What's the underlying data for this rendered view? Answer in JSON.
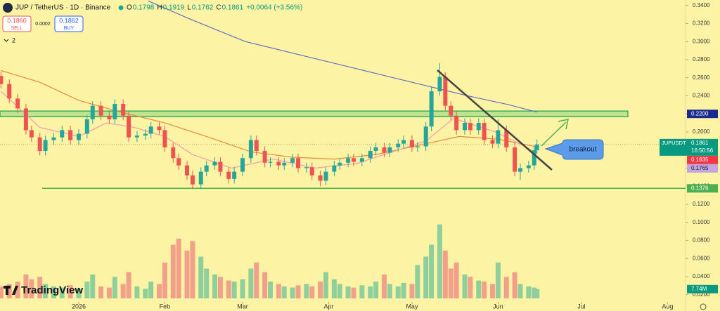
{
  "chart_data": {
    "type": "candlestick",
    "title": "JUP / TetherUS · 1D · Binance",
    "ohlc": [
      {
        "key": "O",
        "value": "0.1798"
      },
      {
        "key": "H",
        "value": "0.1919"
      },
      {
        "key": "L",
        "value": "0.1762"
      },
      {
        "key": "C",
        "value": "0.1861"
      }
    ],
    "change": "+0.0064 (+3.56%)",
    "sell_price": "0.1860",
    "sell": "SELL",
    "spread": "0.0002",
    "buy_price": "0.1862",
    "buy": "BUY",
    "indicators": "2",
    "logo": "TradingView",
    "symbol": "JUPUSDT",
    "last_price": 0.1861,
    "last_time": "16:50:56",
    "up_color": "#26a69a",
    "down_color": "#ef5350",
    "xlim": [
      -28.35,
      218.5
    ],
    "xticks": [
      {
        "value": 0,
        "label": "2026"
      },
      {
        "value": 31,
        "label": "Feb"
      },
      {
        "value": 59,
        "label": "Mar"
      },
      {
        "value": 90,
        "label": "Apr"
      },
      {
        "value": 120,
        "label": "May"
      },
      {
        "value": 151,
        "label": "Jun"
      },
      {
        "value": 181,
        "label": "Jul"
      },
      {
        "value": 212,
        "label": "Aug"
      }
    ],
    "ylim": [
      0.012,
      0.346
    ],
    "yticks": [
      {
        "value": 0.34,
        "label": "0.3400"
      },
      {
        "value": 0.32,
        "label": "0.3200"
      },
      {
        "value": 0.3,
        "label": "0.3000"
      },
      {
        "value": 0.28,
        "label": "0.2800"
      },
      {
        "value": 0.26,
        "label": "0.2600"
      },
      {
        "value": 0.24,
        "label": "0.2400"
      },
      {
        "value": 0.22,
        "label": "0.2200"
      },
      {
        "value": 0.2,
        "label": "0.2000"
      },
      {
        "value": 0.18,
        "label": "0.1800"
      },
      {
        "value": 0.16,
        "label": "0.1600"
      },
      {
        "value": 0.14,
        "label": "0.1400"
      },
      {
        "value": 0.12,
        "label": "0.1200"
      },
      {
        "value": 0.1,
        "label": "0.1000"
      },
      {
        "value": 0.08,
        "label": "0.0800"
      },
      {
        "value": 0.06,
        "label": "0.0600"
      },
      {
        "value": 0.04,
        "label": "0.0400"
      },
      {
        "value": 0.02,
        "label": "0.0200"
      }
    ],
    "x": [
      -28,
      -25,
      -22,
      -19,
      -17,
      -14,
      -12,
      -9,
      -6,
      -3,
      0,
      3,
      5,
      8,
      11,
      13,
      16,
      18,
      21,
      24,
      26,
      29,
      31,
      34,
      36,
      39,
      41,
      44,
      46,
      49,
      51,
      54,
      56,
      59,
      62,
      64,
      67,
      69,
      72,
      74,
      77,
      79,
      82,
      84,
      87,
      89,
      92,
      94,
      97,
      99,
      102,
      105,
      107,
      110,
      112,
      115,
      117,
      120,
      122,
      125,
      127,
      130,
      132,
      134,
      136,
      139,
      141,
      144,
      146,
      149,
      151,
      154,
      157,
      159,
      162,
      164,
      165
    ],
    "open": [
      0.262,
      0.253,
      0.237,
      0.226,
      0.202,
      0.194,
      0.179,
      0.191,
      0.194,
      0.202,
      0.191,
      0.198,
      0.214,
      0.229,
      0.218,
      0.214,
      0.231,
      0.218,
      0.194,
      0.196,
      0.198,
      0.206,
      0.202,
      0.183,
      0.171,
      0.163,
      0.152,
      0.142,
      0.156,
      0.163,
      0.167,
      0.156,
      0.148,
      0.156,
      0.171,
      0.191,
      0.179,
      0.166,
      0.167,
      0.163,
      0.166,
      0.171,
      0.16,
      0.161,
      0.152,
      0.146,
      0.156,
      0.163,
      0.166,
      0.171,
      0.167,
      0.171,
      0.179,
      0.183,
      0.177,
      0.183,
      0.187,
      0.191,
      0.183,
      0.184,
      0.206,
      0.245,
      0.261,
      0.229,
      0.218,
      0.202,
      0.21,
      0.202,
      0.21,
      0.191,
      0.187,
      0.202,
      0.183,
      0.156,
      0.16,
      0.163,
      0.1798
    ],
    "high": [
      0.267,
      0.258,
      0.242,
      0.231,
      0.207,
      0.199,
      0.196,
      0.199,
      0.207,
      0.207,
      0.203,
      0.219,
      0.234,
      0.234,
      0.223,
      0.236,
      0.236,
      0.223,
      0.201,
      0.203,
      0.211,
      0.211,
      0.207,
      0.188,
      0.176,
      0.168,
      0.157,
      0.161,
      0.168,
      0.172,
      0.172,
      0.161,
      0.161,
      0.176,
      0.196,
      0.196,
      0.184,
      0.172,
      0.172,
      0.171,
      0.176,
      0.176,
      0.166,
      0.166,
      0.157,
      0.161,
      0.168,
      0.171,
      0.176,
      0.176,
      0.176,
      0.184,
      0.188,
      0.188,
      0.188,
      0.192,
      0.196,
      0.196,
      0.189,
      0.211,
      0.25,
      0.276,
      0.266,
      0.234,
      0.223,
      0.215,
      0.215,
      0.215,
      0.215,
      0.196,
      0.214,
      0.207,
      0.188,
      0.165,
      0.168,
      0.1848,
      0.1919
    ],
    "low": [
      0.248,
      0.232,
      0.221,
      0.197,
      0.189,
      0.174,
      0.174,
      0.186,
      0.189,
      0.186,
      0.186,
      0.193,
      0.209,
      0.213,
      0.209,
      0.209,
      0.213,
      0.189,
      0.189,
      0.191,
      0.193,
      0.197,
      0.178,
      0.166,
      0.158,
      0.147,
      0.137,
      0.137,
      0.151,
      0.158,
      0.151,
      0.143,
      0.143,
      0.151,
      0.166,
      0.174,
      0.161,
      0.161,
      0.158,
      0.158,
      0.161,
      0.155,
      0.155,
      0.147,
      0.14,
      0.141,
      0.151,
      0.158,
      0.161,
      0.162,
      0.162,
      0.166,
      0.174,
      0.172,
      0.172,
      0.178,
      0.182,
      0.178,
      0.178,
      0.179,
      0.201,
      0.24,
      0.224,
      0.213,
      0.197,
      0.197,
      0.197,
      0.197,
      0.186,
      0.182,
      0.182,
      0.178,
      0.151,
      0.147,
      0.155,
      0.158,
      0.1762
    ],
    "close": [
      0.253,
      0.237,
      0.226,
      0.202,
      0.194,
      0.179,
      0.191,
      0.194,
      0.202,
      0.191,
      0.198,
      0.214,
      0.229,
      0.218,
      0.214,
      0.231,
      0.218,
      0.194,
      0.196,
      0.198,
      0.206,
      0.202,
      0.183,
      0.171,
      0.163,
      0.152,
      0.142,
      0.156,
      0.163,
      0.167,
      0.156,
      0.148,
      0.156,
      0.171,
      0.191,
      0.179,
      0.166,
      0.167,
      0.163,
      0.166,
      0.171,
      0.16,
      0.161,
      0.152,
      0.146,
      0.156,
      0.163,
      0.166,
      0.171,
      0.167,
      0.171,
      0.179,
      0.183,
      0.177,
      0.183,
      0.187,
      0.191,
      0.183,
      0.184,
      0.206,
      0.245,
      0.261,
      0.229,
      0.218,
      0.202,
      0.21,
      0.202,
      0.21,
      0.191,
      0.187,
      0.202,
      0.183,
      0.156,
      0.16,
      0.163,
      0.1798,
      0.1861
    ],
    "volume": [
      10,
      12,
      14,
      20,
      16,
      18,
      12,
      10,
      9,
      11,
      8,
      14,
      20,
      10,
      9,
      18,
      12,
      22,
      10,
      8,
      14,
      12,
      30,
      45,
      50,
      40,
      48,
      35,
      25,
      20,
      18,
      15,
      14,
      16,
      25,
      30,
      22,
      14,
      12,
      10,
      9,
      11,
      12,
      10,
      14,
      22,
      16,
      12,
      10,
      9,
      11,
      10,
      14,
      20,
      12,
      10,
      13,
      12,
      28,
      35,
      45,
      62,
      40,
      25,
      30,
      20,
      18,
      15,
      14,
      12,
      30,
      18,
      22,
      12,
      10,
      9,
      7.74
    ],
    "vlim": [
      0,
      250
    ],
    "volume_up_color": "#8fcf9c",
    "volume_down_color": "#f3a08a",
    "last_volume": {
      "value": 7.74,
      "label": "7.74M"
    },
    "lines": [
      {
        "color": "#e8893a",
        "tag_color": "#f23645",
        "last_label": "0.1835",
        "x": [
          -28,
          -14,
          0,
          15,
          31,
          46,
          62,
          77,
          92,
          107,
          122,
          137,
          151,
          165
        ],
        "values": [
          0.268,
          0.255,
          0.235,
          0.222,
          0.21,
          0.195,
          0.178,
          0.172,
          0.17,
          0.175,
          0.185,
          0.195,
          0.192,
          0.1835
        ]
      },
      {
        "color": "#f29db0",
        "tag_color": "#c3a6e0",
        "last_label": "0.1765",
        "x": [
          -28,
          -14,
          0,
          10,
          20,
          31,
          41,
          55,
          70,
          85,
          100,
          115,
          125,
          135,
          150,
          160,
          165
        ],
        "values": [
          0.245,
          0.205,
          0.195,
          0.21,
          0.205,
          0.195,
          0.175,
          0.16,
          0.17,
          0.16,
          0.165,
          0.18,
          0.19,
          0.215,
          0.2,
          0.185,
          0.1765
        ]
      },
      {
        "color": "#6370c4",
        "x": [
          25,
          40,
          60,
          80,
          100,
          120,
          140,
          155,
          165
        ],
        "values": [
          0.345,
          0.325,
          0.3,
          0.285,
          0.27,
          0.255,
          0.24,
          0.23,
          0.222
        ]
      }
    ],
    "levels": [
      {
        "value": 0.22,
        "label": "0.2200",
        "color": "#1b2a8f",
        "style": "band"
      },
      {
        "value": 0.1376,
        "label": "0.1376",
        "color": "#4caf50",
        "style": "line"
      }
    ],
    "annotations": [
      {
        "text": "breakout"
      }
    ]
  }
}
